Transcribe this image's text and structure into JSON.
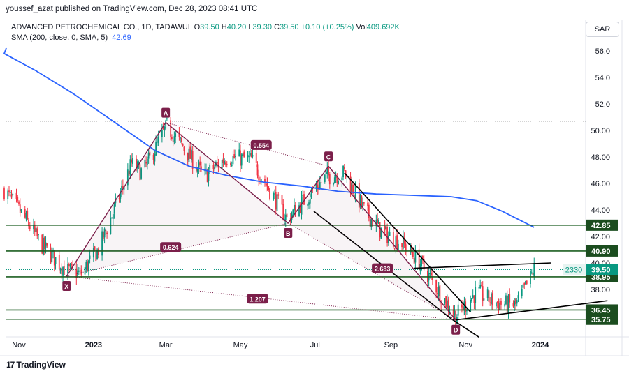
{
  "header": {
    "published": "youssef_azat published on TradingView.com, Dec 28, 2023 08:41 UTC",
    "symbol": "ADVANCED PETROCHEMICAL CO., 1D, TADAWUL",
    "ohlc": {
      "O": "39.50",
      "H": "40.20",
      "L": "39.30",
      "C": "39.50",
      "change": "+0.10 (+0.25%)",
      "vol": "409.692K"
    },
    "sma_label": "SMA (200, close, 0, SMA, 5)",
    "sma_value": "42.69",
    "currency": "SAR"
  },
  "branding": {
    "name": "TradingView",
    "logo": "17"
  },
  "colors": {
    "up": "#089981",
    "down": "#f23645",
    "sma": "#2962ff",
    "pattern": "#7b1f4a",
    "levels": "#1b5e20",
    "price_tag": "#089981"
  },
  "chart_data": {
    "type": "candlestick",
    "title": "ADVANCED PETROCHEMICAL CO., 1D, TADAWUL",
    "x_axis": {
      "ticks": [
        {
          "label": "Nov",
          "date": "2022-11-01"
        },
        {
          "label": "2023",
          "date": "2023-01-01"
        },
        {
          "label": "Mar",
          "date": "2023-03-01"
        },
        {
          "label": "May",
          "date": "2023-05-01"
        },
        {
          "label": "Jul",
          "date": "2023-07-01"
        },
        {
          "label": "Sep",
          "date": "2023-09-01"
        },
        {
          "label": "Nov",
          "date": "2023-11-01"
        },
        {
          "label": "2024",
          "date": "2024-01-01"
        }
      ]
    },
    "y_axis": {
      "range": [
        35.0,
        57.5
      ],
      "ticks": [
        "56.0",
        "54.0",
        "52.0",
        "50.00",
        "48.00",
        "46.00",
        "44.00",
        "42.00",
        "40.00",
        "38.00"
      ],
      "scale": "linear"
    },
    "price_anchors": [
      {
        "date": "2022-10-20",
        "price": 45.5
      },
      {
        "date": "2022-11-05",
        "price": 43.5
      },
      {
        "date": "2022-11-20",
        "price": 41.3
      },
      {
        "date": "2022-12-10",
        "price": 39.4
      },
      {
        "date": "2022-12-22",
        "price": 39.2
      },
      {
        "date": "2023-01-05",
        "price": 41.0
      },
      {
        "date": "2023-01-20",
        "price": 44.5
      },
      {
        "date": "2023-02-01",
        "price": 47.5
      },
      {
        "date": "2023-02-10",
        "price": 46.8
      },
      {
        "date": "2023-03-02",
        "price": 50.3
      },
      {
        "date": "2023-03-15",
        "price": 48.8
      },
      {
        "date": "2023-04-01",
        "price": 46.5
      },
      {
        "date": "2023-04-20",
        "price": 48.0
      },
      {
        "date": "2023-05-10",
        "price": 47.8
      },
      {
        "date": "2023-05-25",
        "price": 45.5
      },
      {
        "date": "2023-06-08",
        "price": 43.3
      },
      {
        "date": "2023-06-25",
        "price": 45.0
      },
      {
        "date": "2023-07-10",
        "price": 46.5
      },
      {
        "date": "2023-07-25",
        "price": 46.8
      },
      {
        "date": "2023-08-10",
        "price": 44.0
      },
      {
        "date": "2023-08-25",
        "price": 42.3
      },
      {
        "date": "2023-09-10",
        "price": 41.5
      },
      {
        "date": "2023-09-25",
        "price": 40.0
      },
      {
        "date": "2023-10-15",
        "price": 37.2
      },
      {
        "date": "2023-10-24",
        "price": 36.0
      },
      {
        "date": "2023-11-10",
        "price": 37.8
      },
      {
        "date": "2023-11-25",
        "price": 37.0
      },
      {
        "date": "2023-12-12",
        "price": 36.8
      },
      {
        "date": "2023-12-22",
        "price": 38.5
      },
      {
        "date": "2023-12-27",
        "price": 39.5
      }
    ],
    "sma_200": [
      {
        "date": "2022-10-20",
        "value": 55.8
      },
      {
        "date": "2022-11-15",
        "value": 54.5
      },
      {
        "date": "2022-12-15",
        "value": 52.8
      },
      {
        "date": "2023-01-20",
        "value": 50.5
      },
      {
        "date": "2023-02-20",
        "value": 48.5
      },
      {
        "date": "2023-03-20",
        "value": 47.3
      },
      {
        "date": "2023-04-20",
        "value": 46.6
      },
      {
        "date": "2023-05-20",
        "value": 46.1
      },
      {
        "date": "2023-06-20",
        "value": 45.8
      },
      {
        "date": "2023-07-20",
        "value": 45.4
      },
      {
        "date": "2023-08-20",
        "value": 45.2
      },
      {
        "date": "2023-09-20",
        "value": 45.1
      },
      {
        "date": "2023-10-20",
        "value": 45.0
      },
      {
        "date": "2023-11-10",
        "value": 44.7
      },
      {
        "date": "2023-12-01",
        "value": 43.9
      },
      {
        "date": "2023-12-27",
        "value": 42.69
      }
    ],
    "harmonic_points": [
      {
        "label": "X",
        "date": "2022-12-10",
        "price": 39.0
      },
      {
        "label": "A",
        "date": "2023-03-01",
        "price": 50.6
      },
      {
        "label": "B",
        "date": "2023-06-09",
        "price": 43.0
      },
      {
        "label": "C",
        "date": "2023-07-12",
        "price": 47.3
      },
      {
        "label": "D",
        "date": "2023-10-24",
        "price": 35.7
      }
    ],
    "ratios": [
      {
        "label": "0.554",
        "date": "2023-05-18",
        "price": 48.9
      },
      {
        "label": "0.624",
        "date": "2023-03-05",
        "price": 41.2
      },
      {
        "label": "2.683",
        "date": "2023-08-25",
        "price": 39.6
      },
      {
        "label": "1.207",
        "date": "2023-05-15",
        "price": 37.3
      }
    ],
    "levels": [
      {
        "label": "42.85",
        "price": 42.85
      },
      {
        "label": "40.90",
        "price": 40.9
      },
      {
        "label": "38.95",
        "price": 38.95
      },
      {
        "label": "36.45",
        "price": 36.45
      },
      {
        "label": "35.75",
        "price": 35.75
      }
    ],
    "dotted_high": {
      "price": 50.7
    },
    "current_price": {
      "label": "39.50",
      "price": 39.5,
      "countdown": "2330"
    },
    "trend_lines": [
      {
        "from": {
          "date": "2023-07-25",
          "price": 46.8
        },
        "to": {
          "date": "2023-11-05",
          "price": 36.3
        }
      },
      {
        "from": {
          "date": "2023-06-30",
          "price": 43.9
        },
        "to": {
          "date": "2023-10-20",
          "price": 35.8
        }
      },
      {
        "from": {
          "date": "2023-10-20",
          "price": 35.8
        },
        "to": {
          "date": "2023-11-12",
          "price": 34.4
        }
      },
      {
        "from": {
          "date": "2023-09-20",
          "price": 39.6
        },
        "to": {
          "date": "2024-01-10",
          "price": 40.0
        }
      },
      {
        "from": {
          "date": "2023-10-24",
          "price": 35.7
        },
        "to": {
          "date": "2024-02-25",
          "price": 37.15
        }
      }
    ]
  }
}
